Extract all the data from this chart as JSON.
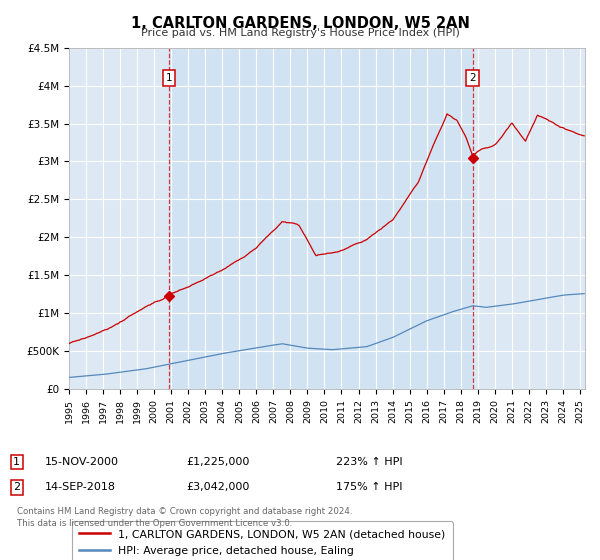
{
  "title": "1, CARLTON GARDENS, LONDON, W5 2AN",
  "subtitle": "Price paid vs. HM Land Registry's House Price Index (HPI)",
  "ylim": [
    0,
    4500000
  ],
  "xlim_start": 1995.0,
  "xlim_end": 2025.3,
  "sale1_date": 2000.876,
  "sale1_price": 1225000,
  "sale2_date": 2018.706,
  "sale2_price": 3042000,
  "legend_line1": "1, CARLTON GARDENS, LONDON, W5 2AN (detached house)",
  "legend_line2": "HPI: Average price, detached house, Ealing",
  "footnote1": "Contains HM Land Registry data © Crown copyright and database right 2024.",
  "footnote2": "This data is licensed under the Open Government Licence v3.0.",
  "red_color": "#cc0000",
  "blue_color": "#5588bb",
  "bg_color": "#dce9f5",
  "shade_color": "#c8dff0",
  "grid_color": "#ffffff",
  "border_color": "#bbbbbb",
  "yticks": [
    0,
    500000,
    1000000,
    1500000,
    2000000,
    2500000,
    3000000,
    3500000,
    4000000,
    4500000
  ],
  "ylabels": [
    "£0",
    "£500K",
    "£1M",
    "£1.5M",
    "£2M",
    "£2.5M",
    "£3M",
    "£3.5M",
    "£4M",
    "£4.5M"
  ],
  "sale1_row": [
    "1",
    "15-NOV-2000",
    "£1,225,000",
    "223% ↑ HPI"
  ],
  "sale2_row": [
    "2",
    "14-SEP-2018",
    "£3,042,000",
    "175% ↑ HPI"
  ]
}
